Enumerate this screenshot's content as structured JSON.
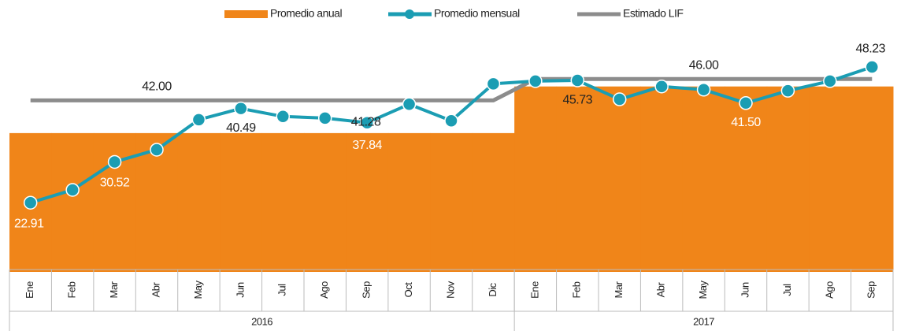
{
  "chart_data": {
    "type": "line",
    "categories": [
      "Ene",
      "Feb",
      "Mar",
      "Abr",
      "May",
      "Jun",
      "Jul",
      "Ago",
      "Sep",
      "Oct",
      "Nov",
      "Dic",
      "Ene",
      "Feb",
      "Mar",
      "Abr",
      "May",
      "Jun",
      "Jul",
      "Ago",
      "Sep"
    ],
    "x_groups": [
      {
        "label": "2016",
        "count": 12
      },
      {
        "label": "2017",
        "count": 9
      }
    ],
    "ylim": [
      10,
      50
    ],
    "legend": "top",
    "series": [
      {
        "name": "Promedio anual",
        "type": "bar",
        "color": "#f08519",
        "values": [
          35.9,
          35.9,
          35.9,
          35.9,
          35.9,
          35.9,
          35.9,
          35.9,
          35.9,
          35.9,
          35.9,
          35.9,
          44.6,
          44.6,
          44.6,
          44.6,
          44.6,
          44.6,
          44.6,
          44.6,
          44.6
        ]
      },
      {
        "name": "Estimado LIF",
        "type": "line",
        "color": "#8c8c8c",
        "values": [
          42,
          42,
          42,
          42,
          42,
          42,
          42,
          42,
          42,
          42,
          42,
          42,
          46,
          46,
          46,
          46,
          46,
          46,
          46,
          46,
          46
        ],
        "value_labels": [
          null,
          null,
          null,
          "42.00",
          null,
          null,
          null,
          null,
          null,
          null,
          null,
          null,
          null,
          null,
          null,
          null,
          "46.00",
          null,
          null,
          null,
          null
        ]
      },
      {
        "name": "Promedio mensual",
        "type": "line",
        "color": "#1b9db3",
        "markers": true,
        "values": [
          22.91,
          25.3,
          30.52,
          32.8,
          38.4,
          40.49,
          39.0,
          38.7,
          37.84,
          41.28,
          38.2,
          45.1,
          45.6,
          45.73,
          42.2,
          44.6,
          44.0,
          41.5,
          43.8,
          45.6,
          48.23
        ],
        "value_labels": [
          "22.91",
          null,
          "30.52",
          null,
          null,
          "40.49",
          null,
          null,
          "37.84",
          "41.28",
          null,
          null,
          null,
          "45.73",
          null,
          null,
          null,
          "41.50",
          null,
          null,
          "48.23"
        ]
      }
    ]
  }
}
